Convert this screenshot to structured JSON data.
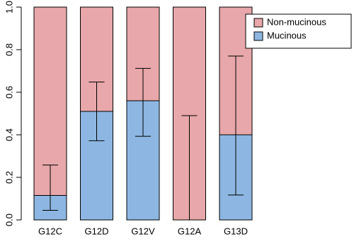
{
  "chart_data": {
    "type": "stacked_bar",
    "categories": [
      "G12C",
      "G12D",
      "G12V",
      "G12A",
      "G13D"
    ],
    "series": [
      {
        "name": "Non-mucinous",
        "color": "#e8a7aa",
        "values": [
          0.885,
          0.49,
          0.44,
          1.0,
          0.6
        ]
      },
      {
        "name": "Mucinous",
        "color": "#8db7e2",
        "values": [
          0.115,
          0.51,
          0.56,
          0,
          0.4
        ],
        "error_low": [
          0.045,
          0.372,
          0.393,
          0,
          0.117
        ],
        "error_high": [
          0.258,
          0.648,
          0.712,
          0.49,
          0.77
        ]
      }
    ],
    "ylim": [
      0,
      1
    ],
    "yticks": [
      {
        "value": 0,
        "label": "0.0"
      },
      0.2,
      0.4,
      0.6,
      0.8,
      {
        "value": 1,
        "label": "1.0"
      }
    ],
    "legend": "top-right"
  }
}
